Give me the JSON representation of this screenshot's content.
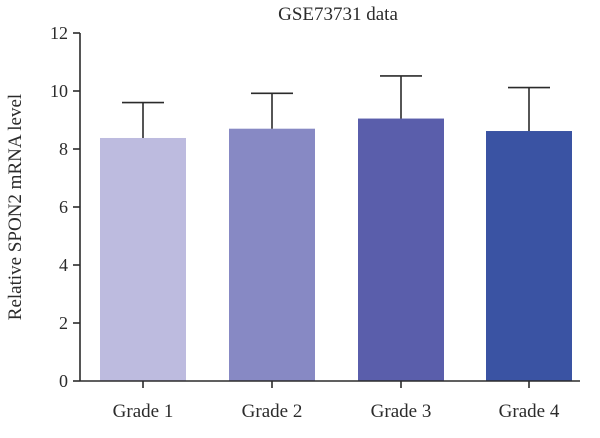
{
  "chart_data": {
    "type": "bar",
    "title": "GSE73731 data",
    "ylabel": "Relative SPON2 mRNA level",
    "xlabel": "",
    "categories": [
      "Grade 1",
      "Grade 2",
      "Grade 3",
      "Grade 4"
    ],
    "values": [
      8.38,
      8.7,
      9.05,
      8.62
    ],
    "error_upper": [
      9.6,
      9.92,
      10.52,
      10.12
    ],
    "colors": [
      "#bdbbdf",
      "#8789c4",
      "#5a5eab",
      "#3a53a3"
    ],
    "ylim": [
      0,
      12
    ],
    "yticks": [
      0,
      2,
      4,
      6,
      8,
      10,
      12
    ],
    "ytick_labels": [
      "0",
      "2",
      "4",
      "6",
      "8",
      "10",
      "12"
    ],
    "grid": false,
    "legend": "none"
  }
}
